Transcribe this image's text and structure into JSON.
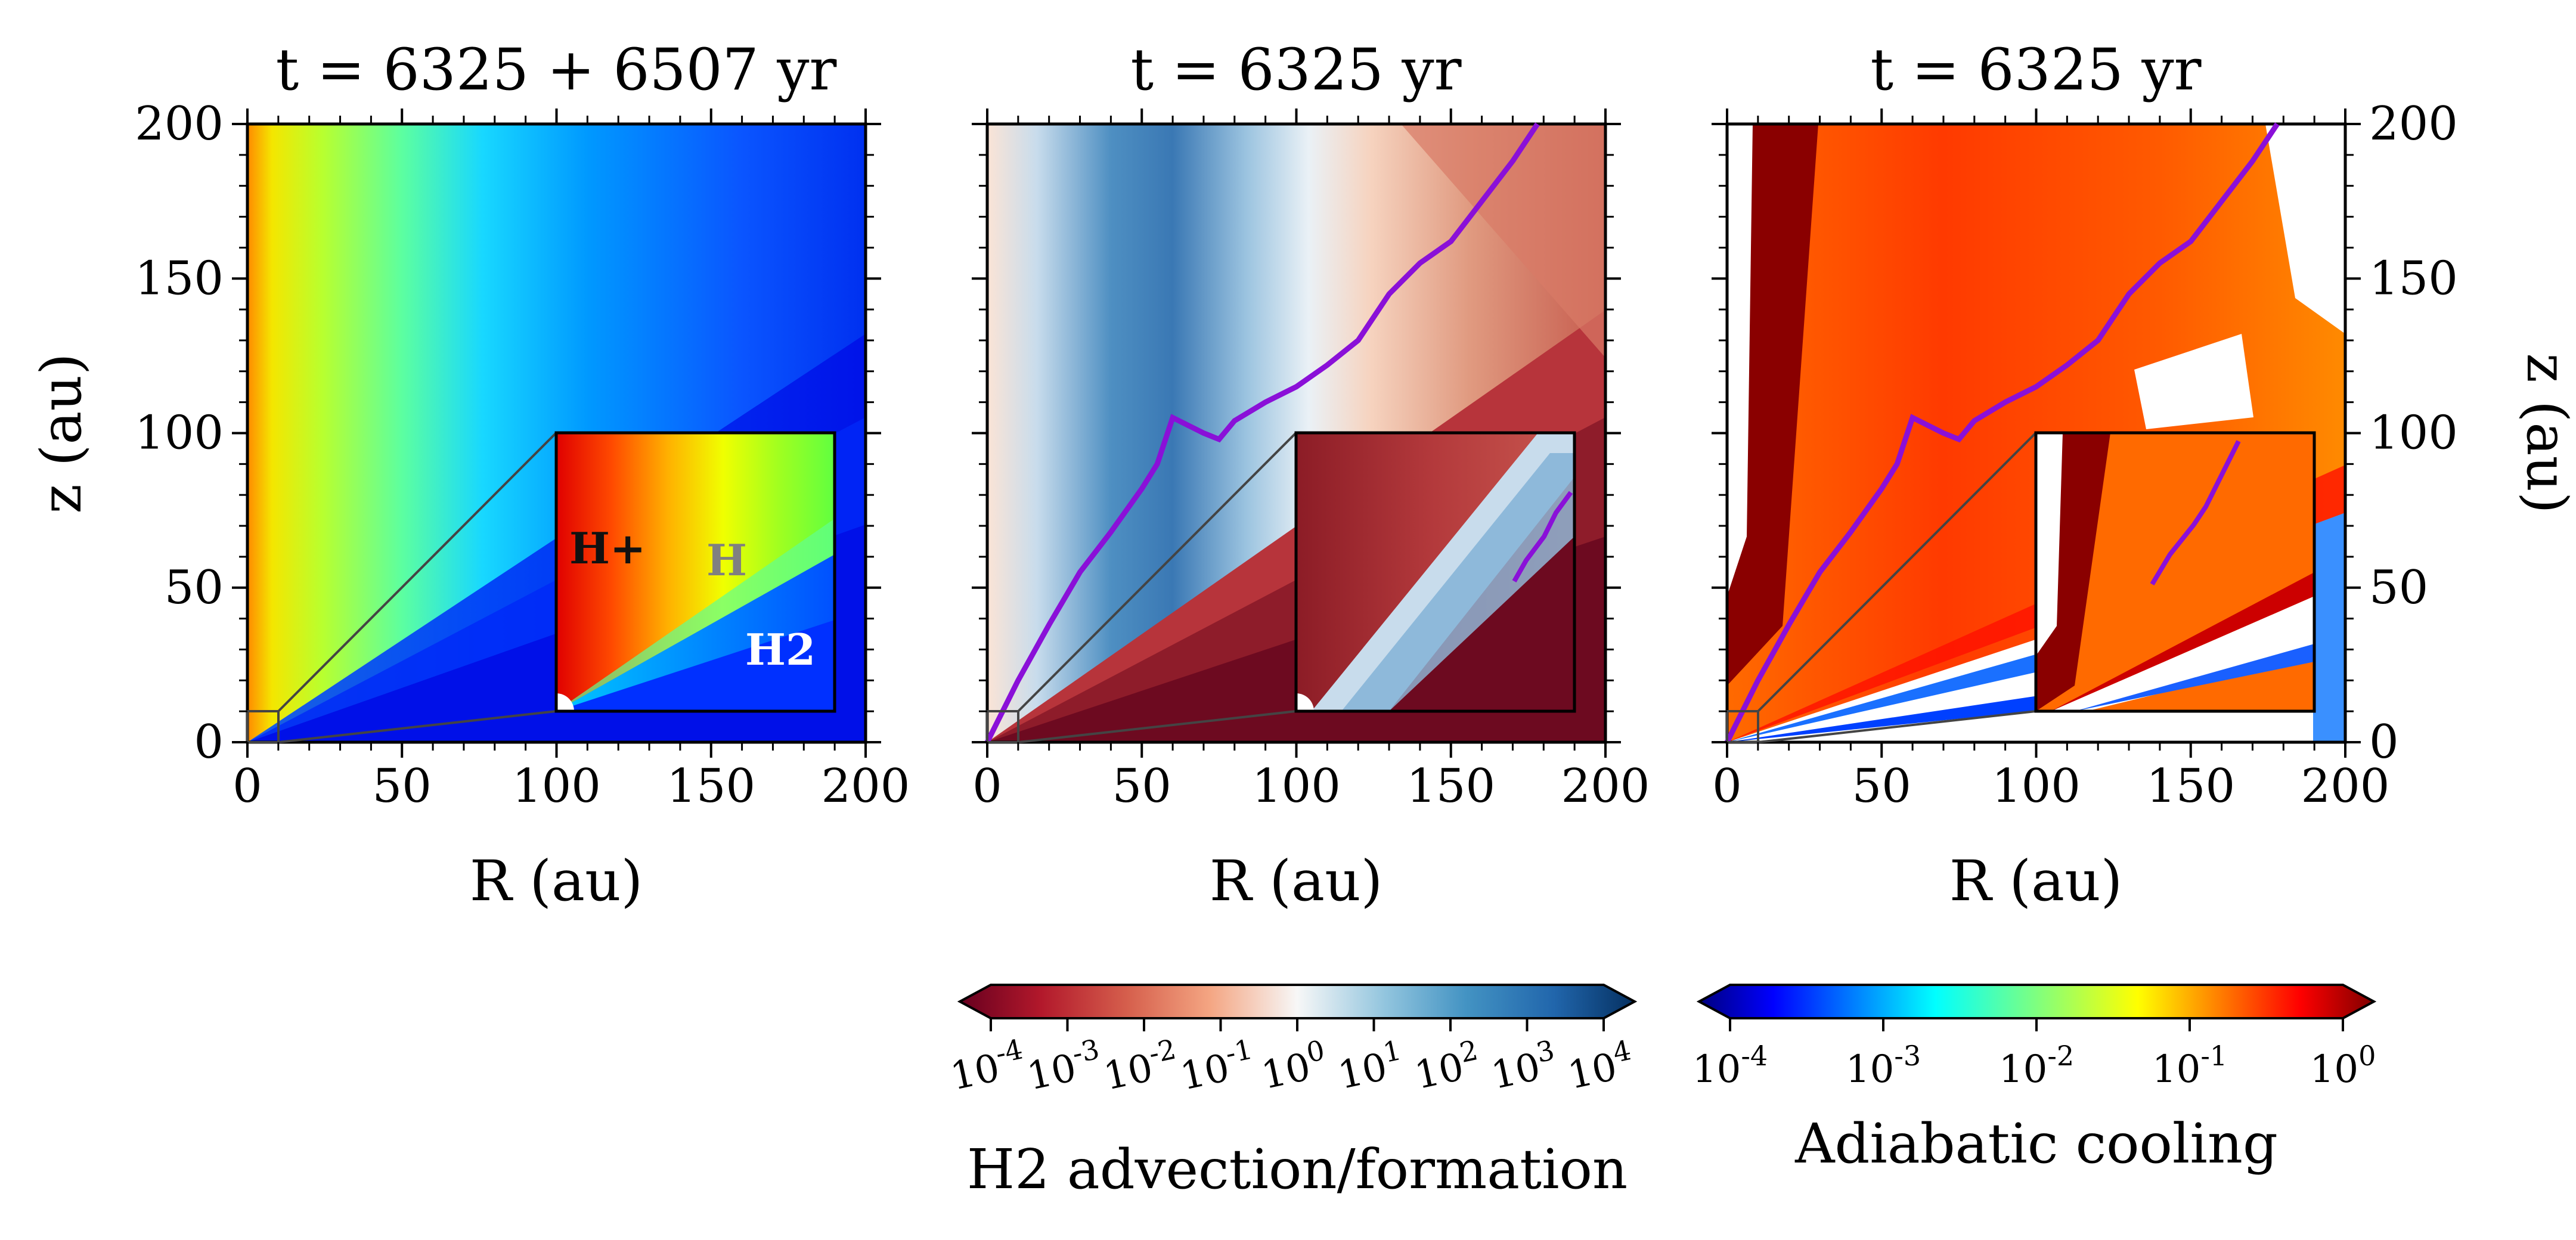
{
  "chart_data": [
    {
      "type": "heatmap",
      "panel": "left",
      "title": "t = 6325 + 6507 yr",
      "xlabel": "R (au)",
      "ylabel": "z (au)",
      "xlim": [
        0,
        200
      ],
      "ylim": [
        0,
        200
      ],
      "x_ticks": [
        "0",
        "50",
        "100",
        "150",
        "200"
      ],
      "y_ticks": [
        "0",
        "50",
        "100",
        "150",
        "200"
      ],
      "colormap": "jet",
      "inset": {
        "xlim": [
          0,
          10
        ],
        "ylim": [
          0,
          10
        ]
      },
      "annotations": [
        {
          "text": "H+",
          "color": "#111111"
        },
        {
          "text": "H",
          "color": "#808080"
        },
        {
          "text": "H2",
          "color": "#ffffff"
        }
      ]
    },
    {
      "type": "heatmap",
      "panel": "middle",
      "title": "t = 6325 yr",
      "xlabel": "R (au)",
      "xlim": [
        0,
        200
      ],
      "ylim": [
        0,
        200
      ],
      "x_ticks": [
        "0",
        "50",
        "100",
        "150",
        "200"
      ],
      "colormap": "RdBu",
      "colorbar": {
        "label": "H2 advection/formation",
        "scale": "log",
        "range": [
          0.0001,
          10000
        ],
        "ticks": [
          "10^-4",
          "10^-3",
          "10^-2",
          "10^-1",
          "10^0",
          "10^1",
          "10^2",
          "10^3",
          "10^4"
        ]
      },
      "boundary_line_color": "#8a10d8",
      "inset": {
        "xlim": [
          0,
          10
        ],
        "ylim": [
          0,
          10
        ]
      }
    },
    {
      "type": "heatmap",
      "panel": "right",
      "title": "t = 6325 yr",
      "xlabel": "R (au)",
      "ylabel": "z (au)",
      "xlim": [
        0,
        200
      ],
      "ylim": [
        0,
        200
      ],
      "x_ticks": [
        "0",
        "50",
        "100",
        "150",
        "200"
      ],
      "y_ticks": [
        "0",
        "50",
        "100",
        "150",
        "200"
      ],
      "colormap": "jet",
      "colorbar": {
        "label": "Adiabatic cooling",
        "scale": "log",
        "range": [
          0.0001,
          1
        ],
        "ticks": [
          "10^-4",
          "10^-3",
          "10^-2",
          "10^-1",
          "10^0"
        ]
      },
      "boundary_line_color": "#8a10d8",
      "inset": {
        "xlim": [
          0,
          10
        ],
        "ylim": [
          0,
          10
        ]
      }
    }
  ],
  "boundary_line_path": [
    [
      0,
      0
    ],
    [
      10,
      20
    ],
    [
      20,
      38
    ],
    [
      30,
      55
    ],
    [
      40,
      68
    ],
    [
      45,
      75
    ],
    [
      50,
      82
    ],
    [
      55,
      90
    ],
    [
      60,
      105
    ],
    [
      70,
      100
    ],
    [
      75,
      98
    ],
    [
      80,
      104
    ],
    [
      90,
      110
    ],
    [
      100,
      115
    ],
    [
      110,
      122
    ],
    [
      120,
      130
    ],
    [
      130,
      145
    ],
    [
      140,
      155
    ],
    [
      150,
      162
    ],
    [
      160,
      175
    ],
    [
      170,
      188
    ],
    [
      178,
      200
    ]
  ]
}
